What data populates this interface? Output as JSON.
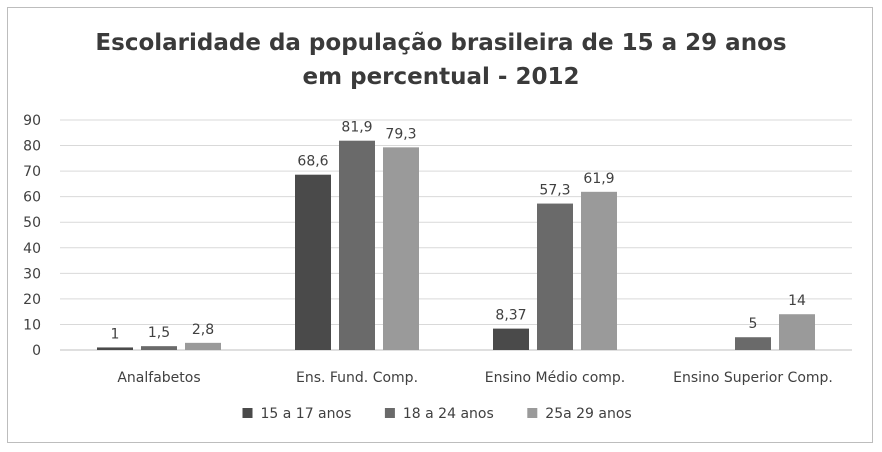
{
  "chart_data": {
    "type": "bar",
    "title_lines": [
      "Escolaridade da população brasileira de 15 a 29 anos",
      "em percentual - 2012"
    ],
    "xlabel": "",
    "ylabel": "",
    "ylim": [
      0,
      90
    ],
    "y_ticks": [
      "0",
      "10",
      "20",
      "30",
      "40",
      "50",
      "60",
      "70",
      "80",
      "90"
    ],
    "grid": true,
    "legend_position": "bottom",
    "categories": [
      "Analfabetos",
      "Ens. Fund. Comp.",
      "Ensino Médio comp.",
      "Ensino Superior Comp."
    ],
    "series": [
      {
        "name": "15 a 17 anos",
        "color": "#4a4a4a",
        "values": [
          1,
          68.6,
          8.37,
          null
        ],
        "labels": [
          "1",
          "68,6",
          "8,37",
          ""
        ]
      },
      {
        "name": "18 a 24 anos",
        "color": "#6a6a6a",
        "values": [
          1.5,
          81.9,
          57.3,
          5
        ],
        "labels": [
          "1,5",
          "81,9",
          "57,3",
          "5"
        ]
      },
      {
        "name": "25a 29 anos",
        "color": "#9a9a9a",
        "values": [
          2.8,
          79.3,
          61.9,
          14
        ],
        "labels": [
          "2,8",
          "79,3",
          "61,9",
          "14"
        ]
      }
    ]
  }
}
